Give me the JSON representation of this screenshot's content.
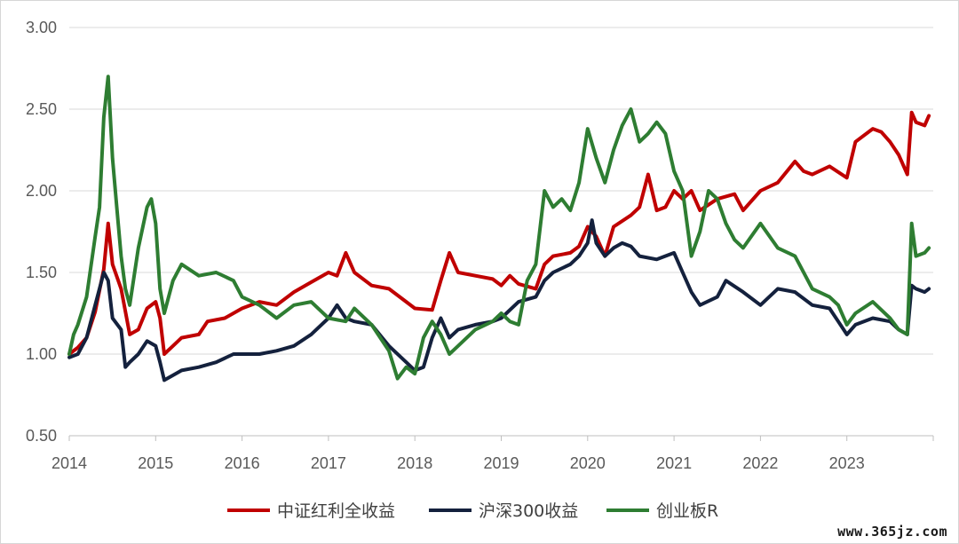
{
  "chart_data": {
    "type": "line",
    "title": "",
    "xlabel": "",
    "ylabel": "",
    "ylim": [
      0.5,
      3.0
    ],
    "xlim": [
      2014.0,
      2024.0
    ],
    "yticks": [
      "0.50",
      "1.00",
      "1.50",
      "2.00",
      "2.50",
      "3.00"
    ],
    "xticks": [
      "2014",
      "2015",
      "2016",
      "2017",
      "2018",
      "2019",
      "2020",
      "2021",
      "2022",
      "2023"
    ],
    "grid": "horizontal",
    "legend_position": "bottom",
    "series": [
      {
        "name": "中证红利全收益",
        "color": "#c00000",
        "points": [
          [
            2014.0,
            1.0
          ],
          [
            2014.1,
            1.04
          ],
          [
            2014.2,
            1.1
          ],
          [
            2014.3,
            1.26
          ],
          [
            2014.4,
            1.52
          ],
          [
            2014.45,
            1.8
          ],
          [
            2014.5,
            1.55
          ],
          [
            2014.6,
            1.4
          ],
          [
            2014.7,
            1.12
          ],
          [
            2014.8,
            1.15
          ],
          [
            2014.9,
            1.28
          ],
          [
            2015.0,
            1.32
          ],
          [
            2015.05,
            1.22
          ],
          [
            2015.1,
            1.0
          ],
          [
            2015.2,
            1.05
          ],
          [
            2015.3,
            1.1
          ],
          [
            2015.5,
            1.12
          ],
          [
            2015.6,
            1.2
          ],
          [
            2015.8,
            1.22
          ],
          [
            2016.0,
            1.28
          ],
          [
            2016.2,
            1.32
          ],
          [
            2016.4,
            1.3
          ],
          [
            2016.6,
            1.38
          ],
          [
            2016.8,
            1.44
          ],
          [
            2017.0,
            1.5
          ],
          [
            2017.1,
            1.48
          ],
          [
            2017.2,
            1.62
          ],
          [
            2017.3,
            1.5
          ],
          [
            2017.5,
            1.42
          ],
          [
            2017.7,
            1.4
          ],
          [
            2017.9,
            1.32
          ],
          [
            2018.0,
            1.28
          ],
          [
            2018.2,
            1.27
          ],
          [
            2018.3,
            1.45
          ],
          [
            2018.4,
            1.62
          ],
          [
            2018.5,
            1.5
          ],
          [
            2018.7,
            1.48
          ],
          [
            2018.9,
            1.46
          ],
          [
            2019.0,
            1.42
          ],
          [
            2019.1,
            1.48
          ],
          [
            2019.2,
            1.43
          ],
          [
            2019.4,
            1.4
          ],
          [
            2019.5,
            1.55
          ],
          [
            2019.6,
            1.6
          ],
          [
            2019.8,
            1.62
          ],
          [
            2019.9,
            1.66
          ],
          [
            2020.0,
            1.78
          ],
          [
            2020.1,
            1.72
          ],
          [
            2020.2,
            1.6
          ],
          [
            2020.3,
            1.78
          ],
          [
            2020.5,
            1.85
          ],
          [
            2020.6,
            1.9
          ],
          [
            2020.7,
            2.1
          ],
          [
            2020.8,
            1.88
          ],
          [
            2020.9,
            1.9
          ],
          [
            2021.0,
            2.0
          ],
          [
            2021.1,
            1.95
          ],
          [
            2021.2,
            2.0
          ],
          [
            2021.3,
            1.88
          ],
          [
            2021.5,
            1.95
          ],
          [
            2021.7,
            1.98
          ],
          [
            2021.8,
            1.88
          ],
          [
            2022.0,
            2.0
          ],
          [
            2022.2,
            2.05
          ],
          [
            2022.4,
            2.18
          ],
          [
            2022.5,
            2.12
          ],
          [
            2022.6,
            2.1
          ],
          [
            2022.8,
            2.15
          ],
          [
            2023.0,
            2.08
          ],
          [
            2023.1,
            2.3
          ],
          [
            2023.3,
            2.38
          ],
          [
            2023.4,
            2.36
          ],
          [
            2023.5,
            2.3
          ],
          [
            2023.6,
            2.22
          ],
          [
            2023.7,
            2.1
          ],
          [
            2023.75,
            2.48
          ],
          [
            2023.8,
            2.42
          ],
          [
            2023.9,
            2.4
          ],
          [
            2023.95,
            2.46
          ]
        ]
      },
      {
        "name": "沪深300收益",
        "color": "#14213d",
        "points": [
          [
            2014.0,
            0.98
          ],
          [
            2014.1,
            1.0
          ],
          [
            2014.2,
            1.1
          ],
          [
            2014.3,
            1.3
          ],
          [
            2014.4,
            1.5
          ],
          [
            2014.45,
            1.45
          ],
          [
            2014.5,
            1.22
          ],
          [
            2014.6,
            1.15
          ],
          [
            2014.65,
            0.92
          ],
          [
            2014.7,
            0.95
          ],
          [
            2014.8,
            1.0
          ],
          [
            2014.9,
            1.08
          ],
          [
            2015.0,
            1.05
          ],
          [
            2015.05,
            0.95
          ],
          [
            2015.1,
            0.84
          ],
          [
            2015.2,
            0.87
          ],
          [
            2015.3,
            0.9
          ],
          [
            2015.5,
            0.92
          ],
          [
            2015.7,
            0.95
          ],
          [
            2015.9,
            1.0
          ],
          [
            2016.0,
            1.0
          ],
          [
            2016.2,
            1.0
          ],
          [
            2016.4,
            1.02
          ],
          [
            2016.6,
            1.05
          ],
          [
            2016.8,
            1.12
          ],
          [
            2017.0,
            1.22
          ],
          [
            2017.1,
            1.3
          ],
          [
            2017.2,
            1.22
          ],
          [
            2017.3,
            1.2
          ],
          [
            2017.5,
            1.18
          ],
          [
            2017.7,
            1.05
          ],
          [
            2017.9,
            0.95
          ],
          [
            2018.0,
            0.9
          ],
          [
            2018.1,
            0.92
          ],
          [
            2018.2,
            1.1
          ],
          [
            2018.3,
            1.22
          ],
          [
            2018.4,
            1.1
          ],
          [
            2018.5,
            1.15
          ],
          [
            2018.7,
            1.18
          ],
          [
            2018.9,
            1.2
          ],
          [
            2019.0,
            1.22
          ],
          [
            2019.2,
            1.32
          ],
          [
            2019.4,
            1.35
          ],
          [
            2019.5,
            1.45
          ],
          [
            2019.6,
            1.5
          ],
          [
            2019.8,
            1.55
          ],
          [
            2019.9,
            1.6
          ],
          [
            2020.0,
            1.68
          ],
          [
            2020.05,
            1.82
          ],
          [
            2020.1,
            1.68
          ],
          [
            2020.2,
            1.6
          ],
          [
            2020.3,
            1.65
          ],
          [
            2020.4,
            1.68
          ],
          [
            2020.5,
            1.66
          ],
          [
            2020.6,
            1.6
          ],
          [
            2020.8,
            1.58
          ],
          [
            2021.0,
            1.62
          ],
          [
            2021.1,
            1.5
          ],
          [
            2021.2,
            1.38
          ],
          [
            2021.3,
            1.3
          ],
          [
            2021.5,
            1.35
          ],
          [
            2021.6,
            1.45
          ],
          [
            2021.8,
            1.38
          ],
          [
            2022.0,
            1.3
          ],
          [
            2022.2,
            1.4
          ],
          [
            2022.4,
            1.38
          ],
          [
            2022.6,
            1.3
          ],
          [
            2022.8,
            1.28
          ],
          [
            2022.9,
            1.2
          ],
          [
            2023.0,
            1.12
          ],
          [
            2023.1,
            1.18
          ],
          [
            2023.3,
            1.22
          ],
          [
            2023.5,
            1.2
          ],
          [
            2023.6,
            1.15
          ],
          [
            2023.7,
            1.12
          ],
          [
            2023.75,
            1.42
          ],
          [
            2023.8,
            1.4
          ],
          [
            2023.9,
            1.38
          ],
          [
            2023.95,
            1.4
          ]
        ]
      },
      {
        "name": "创业板R",
        "color": "#2e7d32",
        "points": [
          [
            2014.0,
            1.0
          ],
          [
            2014.05,
            1.12
          ],
          [
            2014.1,
            1.18
          ],
          [
            2014.2,
            1.35
          ],
          [
            2014.3,
            1.72
          ],
          [
            2014.35,
            1.9
          ],
          [
            2014.4,
            2.45
          ],
          [
            2014.45,
            2.7
          ],
          [
            2014.5,
            2.2
          ],
          [
            2014.55,
            1.9
          ],
          [
            2014.6,
            1.6
          ],
          [
            2014.65,
            1.4
          ],
          [
            2014.7,
            1.3
          ],
          [
            2014.8,
            1.65
          ],
          [
            2014.9,
            1.9
          ],
          [
            2014.95,
            1.95
          ],
          [
            2015.0,
            1.8
          ],
          [
            2015.05,
            1.4
          ],
          [
            2015.1,
            1.25
          ],
          [
            2015.2,
            1.45
          ],
          [
            2015.3,
            1.55
          ],
          [
            2015.5,
            1.48
          ],
          [
            2015.7,
            1.5
          ],
          [
            2015.9,
            1.45
          ],
          [
            2016.0,
            1.35
          ],
          [
            2016.2,
            1.3
          ],
          [
            2016.4,
            1.22
          ],
          [
            2016.6,
            1.3
          ],
          [
            2016.8,
            1.32
          ],
          [
            2017.0,
            1.22
          ],
          [
            2017.2,
            1.2
          ],
          [
            2017.3,
            1.28
          ],
          [
            2017.5,
            1.18
          ],
          [
            2017.7,
            1.02
          ],
          [
            2017.8,
            0.85
          ],
          [
            2017.9,
            0.92
          ],
          [
            2018.0,
            0.88
          ],
          [
            2018.1,
            1.1
          ],
          [
            2018.2,
            1.2
          ],
          [
            2018.3,
            1.12
          ],
          [
            2018.4,
            1.0
          ],
          [
            2018.5,
            1.05
          ],
          [
            2018.7,
            1.15
          ],
          [
            2018.9,
            1.2
          ],
          [
            2019.0,
            1.25
          ],
          [
            2019.1,
            1.2
          ],
          [
            2019.2,
            1.18
          ],
          [
            2019.3,
            1.45
          ],
          [
            2019.4,
            1.55
          ],
          [
            2019.5,
            2.0
          ],
          [
            2019.6,
            1.9
          ],
          [
            2019.7,
            1.95
          ],
          [
            2019.8,
            1.88
          ],
          [
            2019.9,
            2.05
          ],
          [
            2020.0,
            2.38
          ],
          [
            2020.1,
            2.2
          ],
          [
            2020.2,
            2.05
          ],
          [
            2020.3,
            2.25
          ],
          [
            2020.4,
            2.4
          ],
          [
            2020.5,
            2.5
          ],
          [
            2020.6,
            2.3
          ],
          [
            2020.7,
            2.35
          ],
          [
            2020.8,
            2.42
          ],
          [
            2020.9,
            2.35
          ],
          [
            2021.0,
            2.12
          ],
          [
            2021.1,
            2.0
          ],
          [
            2021.2,
            1.6
          ],
          [
            2021.3,
            1.75
          ],
          [
            2021.4,
            2.0
          ],
          [
            2021.5,
            1.95
          ],
          [
            2021.6,
            1.8
          ],
          [
            2021.7,
            1.7
          ],
          [
            2021.8,
            1.65
          ],
          [
            2022.0,
            1.8
          ],
          [
            2022.2,
            1.65
          ],
          [
            2022.4,
            1.6
          ],
          [
            2022.6,
            1.4
          ],
          [
            2022.8,
            1.35
          ],
          [
            2022.9,
            1.3
          ],
          [
            2023.0,
            1.18
          ],
          [
            2023.1,
            1.25
          ],
          [
            2023.3,
            1.32
          ],
          [
            2023.5,
            1.22
          ],
          [
            2023.6,
            1.15
          ],
          [
            2023.7,
            1.12
          ],
          [
            2023.75,
            1.8
          ],
          [
            2023.8,
            1.6
          ],
          [
            2023.9,
            1.62
          ],
          [
            2023.95,
            1.65
          ]
        ]
      }
    ]
  },
  "watermark": "www.365jz.com"
}
